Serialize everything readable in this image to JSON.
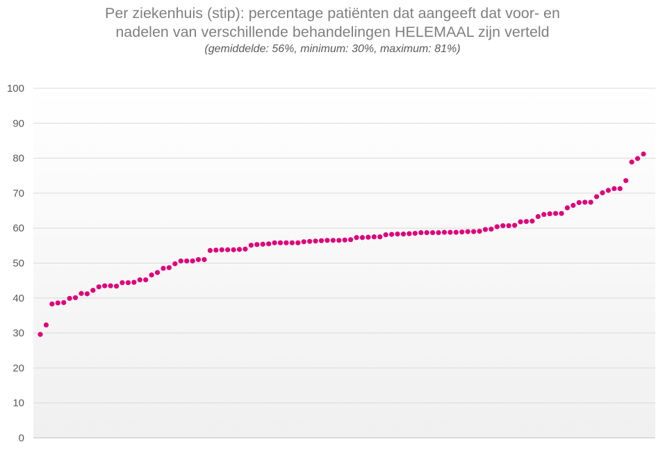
{
  "chart_data": {
    "type": "scatter",
    "title_line1": "Per ziekenhuis (stip): percentage patiënten dat aangeeft dat voor- en",
    "title_line2": "nadelen van verschillende behandelingen HELEMAAL zijn verteld",
    "subtitle": "(gemiddelde: 56%, minimum: 30%, maximum: 81%)",
    "ylim": [
      0,
      100
    ],
    "yticks": [
      "0",
      "10",
      "20",
      "30",
      "40",
      "50",
      "60",
      "70",
      "80",
      "90",
      "100"
    ],
    "grid": true,
    "marker_color": "#e0007a",
    "values": [
      29.6,
      32.3,
      38.3,
      38.6,
      38.7,
      39.9,
      40.1,
      41.3,
      41.2,
      42.2,
      43.2,
      43.5,
      43.5,
      43.4,
      44.4,
      44.4,
      44.5,
      45.2,
      45.2,
      46.6,
      47.3,
      48.5,
      48.7,
      49.8,
      50.6,
      50.6,
      50.6,
      51.0,
      51.0,
      53.6,
      53.7,
      53.8,
      53.8,
      53.8,
      53.9,
      54.0,
      55.1,
      55.3,
      55.4,
      55.5,
      55.8,
      55.8,
      55.8,
      55.8,
      55.8,
      56.1,
      56.2,
      56.3,
      56.4,
      56.5,
      56.5,
      56.5,
      56.6,
      56.7,
      57.3,
      57.3,
      57.4,
      57.5,
      57.5,
      58.1,
      58.2,
      58.3,
      58.3,
      58.4,
      58.5,
      58.7,
      58.7,
      58.7,
      58.7,
      58.8,
      58.8,
      58.8,
      58.9,
      59.0,
      59.0,
      59.1,
      59.6,
      59.7,
      60.4,
      60.7,
      60.7,
      60.8,
      61.8,
      61.9,
      62.0,
      63.3,
      63.9,
      64.1,
      64.2,
      64.2,
      65.8,
      66.5,
      67.3,
      67.4,
      67.4,
      69.0,
      70.1,
      70.8,
      71.3,
      71.3,
      73.6,
      78.9,
      79.9,
      81.2
    ]
  }
}
